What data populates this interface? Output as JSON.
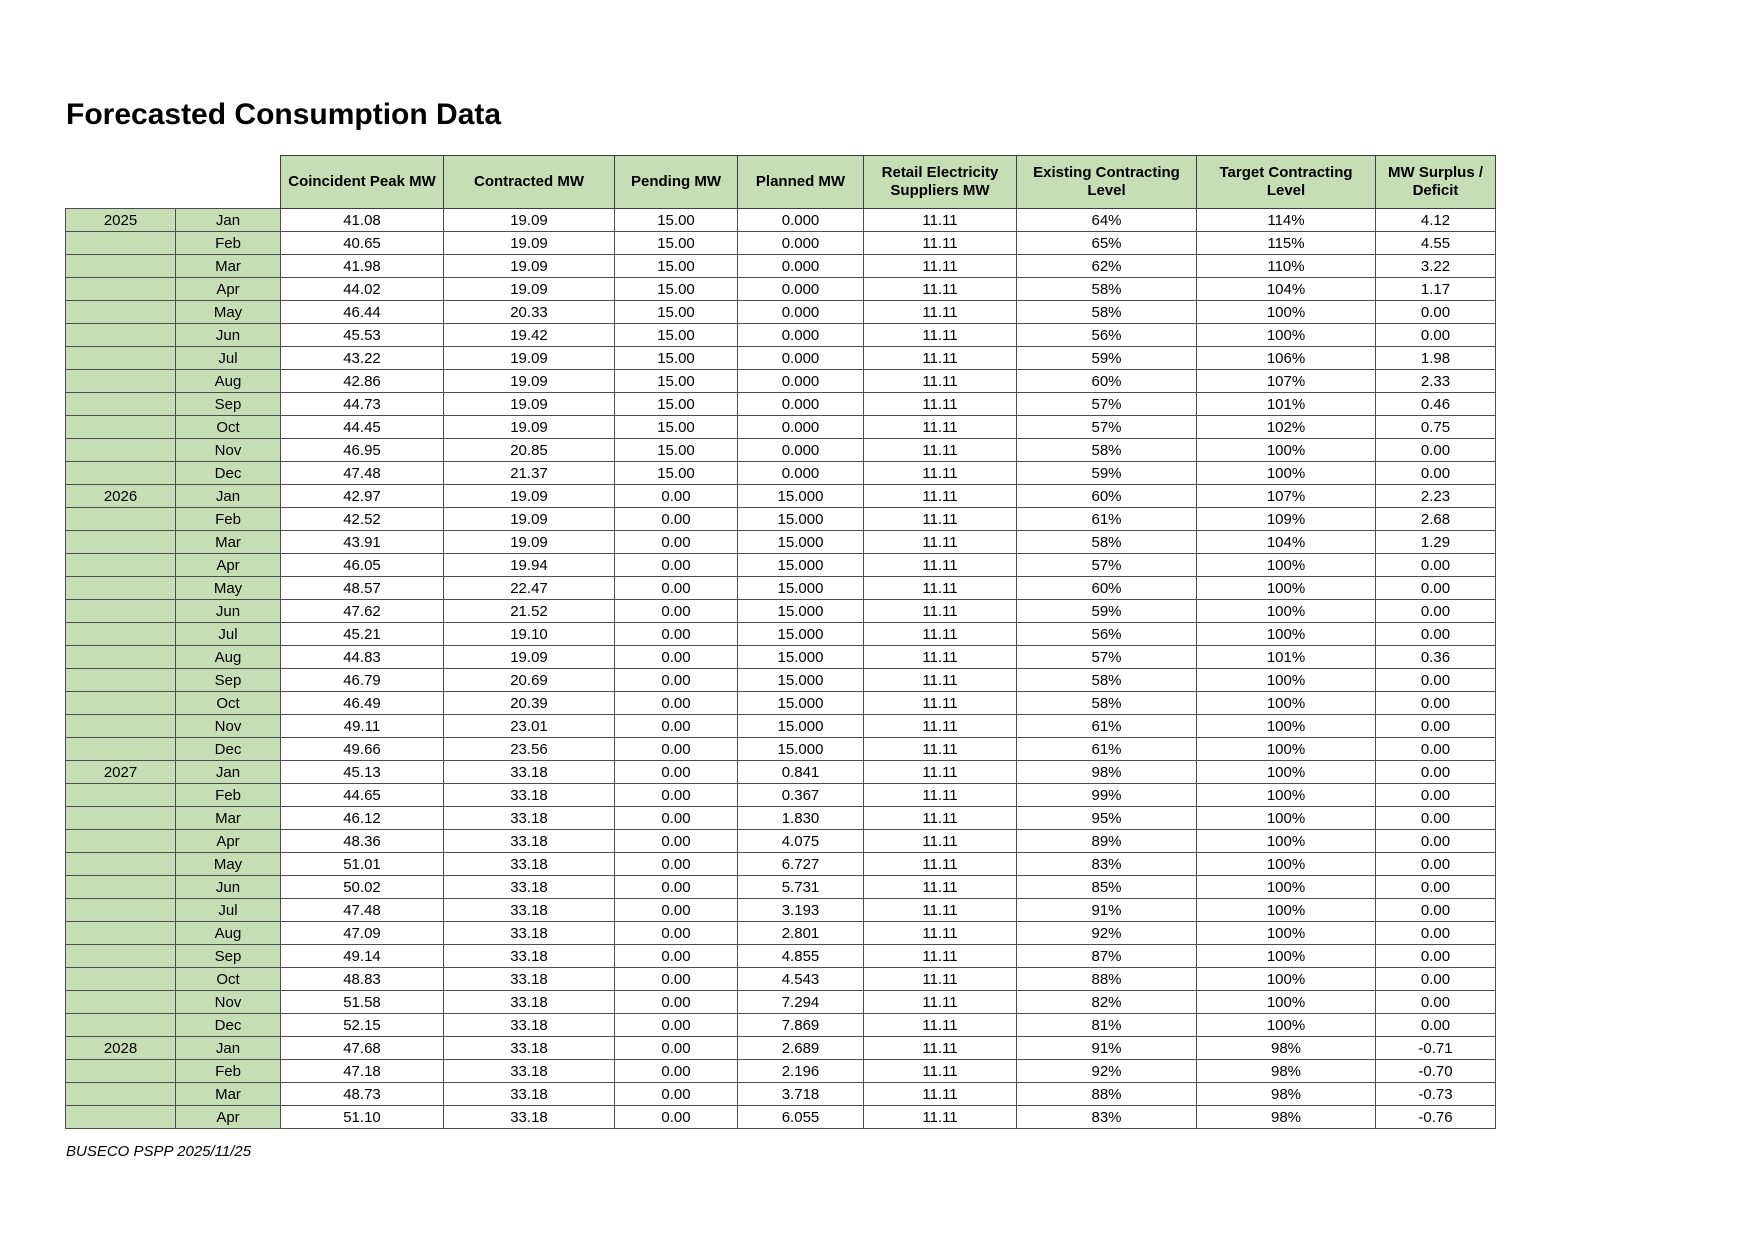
{
  "page": {
    "title": "Forecasted Consumption Data",
    "footer": "BUSECO PSPP 2025/11/25"
  },
  "colors": {
    "header_green": "#c6deb3",
    "grid_line": "#4d4d4d",
    "text": "#000000"
  },
  "table": {
    "columns": [
      "Coincident Peak MW",
      "Contracted MW",
      "Pending MW",
      "Planned MW",
      "Retail Electricity Suppliers MW",
      "Existing Contracting Level",
      "Target Contracting Level",
      "MW Surplus / Deficit"
    ],
    "rows": [
      {
        "year": "2025",
        "month": "Jan",
        "values": [
          "41.08",
          "19.09",
          "15.00",
          "0.000",
          "11.11",
          "64%",
          "114%",
          "4.12"
        ]
      },
      {
        "year": "",
        "month": "Feb",
        "values": [
          "40.65",
          "19.09",
          "15.00",
          "0.000",
          "11.11",
          "65%",
          "115%",
          "4.55"
        ]
      },
      {
        "year": "",
        "month": "Mar",
        "values": [
          "41.98",
          "19.09",
          "15.00",
          "0.000",
          "11.11",
          "62%",
          "110%",
          "3.22"
        ]
      },
      {
        "year": "",
        "month": "Apr",
        "values": [
          "44.02",
          "19.09",
          "15.00",
          "0.000",
          "11.11",
          "58%",
          "104%",
          "1.17"
        ]
      },
      {
        "year": "",
        "month": "May",
        "values": [
          "46.44",
          "20.33",
          "15.00",
          "0.000",
          "11.11",
          "58%",
          "100%",
          "0.00"
        ]
      },
      {
        "year": "",
        "month": "Jun",
        "values": [
          "45.53",
          "19.42",
          "15.00",
          "0.000",
          "11.11",
          "56%",
          "100%",
          "0.00"
        ]
      },
      {
        "year": "",
        "month": "Jul",
        "values": [
          "43.22",
          "19.09",
          "15.00",
          "0.000",
          "11.11",
          "59%",
          "106%",
          "1.98"
        ]
      },
      {
        "year": "",
        "month": "Aug",
        "values": [
          "42.86",
          "19.09",
          "15.00",
          "0.000",
          "11.11",
          "60%",
          "107%",
          "2.33"
        ]
      },
      {
        "year": "",
        "month": "Sep",
        "values": [
          "44.73",
          "19.09",
          "15.00",
          "0.000",
          "11.11",
          "57%",
          "101%",
          "0.46"
        ]
      },
      {
        "year": "",
        "month": "Oct",
        "values": [
          "44.45",
          "19.09",
          "15.00",
          "0.000",
          "11.11",
          "57%",
          "102%",
          "0.75"
        ]
      },
      {
        "year": "",
        "month": "Nov",
        "values": [
          "46.95",
          "20.85",
          "15.00",
          "0.000",
          "11.11",
          "58%",
          "100%",
          "0.00"
        ]
      },
      {
        "year": "",
        "month": "Dec",
        "values": [
          "47.48",
          "21.37",
          "15.00",
          "0.000",
          "11.11",
          "59%",
          "100%",
          "0.00"
        ]
      },
      {
        "year": "2026",
        "month": "Jan",
        "values": [
          "42.97",
          "19.09",
          "0.00",
          "15.000",
          "11.11",
          "60%",
          "107%",
          "2.23"
        ]
      },
      {
        "year": "",
        "month": "Feb",
        "values": [
          "42.52",
          "19.09",
          "0.00",
          "15.000",
          "11.11",
          "61%",
          "109%",
          "2.68"
        ]
      },
      {
        "year": "",
        "month": "Mar",
        "values": [
          "43.91",
          "19.09",
          "0.00",
          "15.000",
          "11.11",
          "58%",
          "104%",
          "1.29"
        ]
      },
      {
        "year": "",
        "month": "Apr",
        "values": [
          "46.05",
          "19.94",
          "0.00",
          "15.000",
          "11.11",
          "57%",
          "100%",
          "0.00"
        ]
      },
      {
        "year": "",
        "month": "May",
        "values": [
          "48.57",
          "22.47",
          "0.00",
          "15.000",
          "11.11",
          "60%",
          "100%",
          "0.00"
        ]
      },
      {
        "year": "",
        "month": "Jun",
        "values": [
          "47.62",
          "21.52",
          "0.00",
          "15.000",
          "11.11",
          "59%",
          "100%",
          "0.00"
        ]
      },
      {
        "year": "",
        "month": "Jul",
        "values": [
          "45.21",
          "19.10",
          "0.00",
          "15.000",
          "11.11",
          "56%",
          "100%",
          "0.00"
        ]
      },
      {
        "year": "",
        "month": "Aug",
        "values": [
          "44.83",
          "19.09",
          "0.00",
          "15.000",
          "11.11",
          "57%",
          "101%",
          "0.36"
        ]
      },
      {
        "year": "",
        "month": "Sep",
        "values": [
          "46.79",
          "20.69",
          "0.00",
          "15.000",
          "11.11",
          "58%",
          "100%",
          "0.00"
        ]
      },
      {
        "year": "",
        "month": "Oct",
        "values": [
          "46.49",
          "20.39",
          "0.00",
          "15.000",
          "11.11",
          "58%",
          "100%",
          "0.00"
        ]
      },
      {
        "year": "",
        "month": "Nov",
        "values": [
          "49.11",
          "23.01",
          "0.00",
          "15.000",
          "11.11",
          "61%",
          "100%",
          "0.00"
        ]
      },
      {
        "year": "",
        "month": "Dec",
        "values": [
          "49.66",
          "23.56",
          "0.00",
          "15.000",
          "11.11",
          "61%",
          "100%",
          "0.00"
        ]
      },
      {
        "year": "2027",
        "month": "Jan",
        "values": [
          "45.13",
          "33.18",
          "0.00",
          "0.841",
          "11.11",
          "98%",
          "100%",
          "0.00"
        ]
      },
      {
        "year": "",
        "month": "Feb",
        "values": [
          "44.65",
          "33.18",
          "0.00",
          "0.367",
          "11.11",
          "99%",
          "100%",
          "0.00"
        ]
      },
      {
        "year": "",
        "month": "Mar",
        "values": [
          "46.12",
          "33.18",
          "0.00",
          "1.830",
          "11.11",
          "95%",
          "100%",
          "0.00"
        ]
      },
      {
        "year": "",
        "month": "Apr",
        "values": [
          "48.36",
          "33.18",
          "0.00",
          "4.075",
          "11.11",
          "89%",
          "100%",
          "0.00"
        ]
      },
      {
        "year": "",
        "month": "May",
        "values": [
          "51.01",
          "33.18",
          "0.00",
          "6.727",
          "11.11",
          "83%",
          "100%",
          "0.00"
        ]
      },
      {
        "year": "",
        "month": "Jun",
        "values": [
          "50.02",
          "33.18",
          "0.00",
          "5.731",
          "11.11",
          "85%",
          "100%",
          "0.00"
        ]
      },
      {
        "year": "",
        "month": "Jul",
        "values": [
          "47.48",
          "33.18",
          "0.00",
          "3.193",
          "11.11",
          "91%",
          "100%",
          "0.00"
        ]
      },
      {
        "year": "",
        "month": "Aug",
        "values": [
          "47.09",
          "33.18",
          "0.00",
          "2.801",
          "11.11",
          "92%",
          "100%",
          "0.00"
        ]
      },
      {
        "year": "",
        "month": "Sep",
        "values": [
          "49.14",
          "33.18",
          "0.00",
          "4.855",
          "11.11",
          "87%",
          "100%",
          "0.00"
        ]
      },
      {
        "year": "",
        "month": "Oct",
        "values": [
          "48.83",
          "33.18",
          "0.00",
          "4.543",
          "11.11",
          "88%",
          "100%",
          "0.00"
        ]
      },
      {
        "year": "",
        "month": "Nov",
        "values": [
          "51.58",
          "33.18",
          "0.00",
          "7.294",
          "11.11",
          "82%",
          "100%",
          "0.00"
        ]
      },
      {
        "year": "",
        "month": "Dec",
        "values": [
          "52.15",
          "33.18",
          "0.00",
          "7.869",
          "11.11",
          "81%",
          "100%",
          "0.00"
        ]
      },
      {
        "year": "2028",
        "month": "Jan",
        "values": [
          "47.68",
          "33.18",
          "0.00",
          "2.689",
          "11.11",
          "91%",
          "98%",
          "-0.71"
        ]
      },
      {
        "year": "",
        "month": "Feb",
        "values": [
          "47.18",
          "33.18",
          "0.00",
          "2.196",
          "11.11",
          "92%",
          "98%",
          "-0.70"
        ]
      },
      {
        "year": "",
        "month": "Mar",
        "values": [
          "48.73",
          "33.18",
          "0.00",
          "3.718",
          "11.11",
          "88%",
          "98%",
          "-0.73"
        ]
      },
      {
        "year": "",
        "month": "Apr",
        "values": [
          "51.10",
          "33.18",
          "0.00",
          "6.055",
          "11.11",
          "83%",
          "98%",
          "-0.76"
        ]
      }
    ]
  }
}
